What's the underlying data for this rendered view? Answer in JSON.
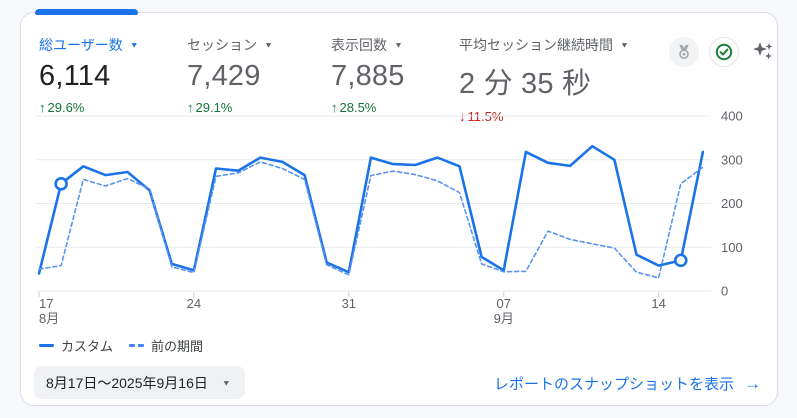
{
  "ui": {
    "caret": "▼",
    "arrow_right": "→"
  },
  "colors": {
    "accent": "#1a73e8",
    "positive": "#137333",
    "negative": "#c5221f",
    "line_current": "#1a73e8",
    "line_previous": "#5b93f0",
    "grid": "#e8eaed",
    "axis_text": "#5f6368",
    "tick": "#c9cdd2"
  },
  "metrics": [
    {
      "label": "総ユーザー数",
      "value": "6,114",
      "delta_arrow": "↑",
      "delta": "29.6%",
      "trend": "up",
      "selected": true
    },
    {
      "label": "セッション",
      "value": "7,429",
      "delta_arrow": "↑",
      "delta": "29.1%",
      "trend": "up",
      "selected": false
    },
    {
      "label": "表示回数",
      "value": "7,885",
      "delta_arrow": "↑",
      "delta": "28.5%",
      "trend": "up",
      "selected": false
    },
    {
      "label": "平均セッション継続時間",
      "value": "2 分 35 秒",
      "delta_arrow": "↓",
      "delta": "11.5%",
      "trend": "down",
      "selected": false
    }
  ],
  "icons": {
    "medal": "benchmark-medal",
    "check": "data-quality-check",
    "sparkle": "insights-sparkle"
  },
  "chart_data": {
    "type": "line",
    "x": [
      "8/17",
      "8/18",
      "8/19",
      "8/20",
      "8/21",
      "8/22",
      "8/23",
      "8/24",
      "8/25",
      "8/26",
      "8/27",
      "8/28",
      "8/29",
      "8/30",
      "8/31",
      "9/1",
      "9/2",
      "9/3",
      "9/4",
      "9/5",
      "9/6",
      "9/7",
      "9/8",
      "9/9",
      "9/10",
      "9/11",
      "9/12",
      "9/13",
      "9/14",
      "9/15",
      "9/16"
    ],
    "series": [
      {
        "name": "カスタム",
        "style": "solid",
        "values": [
          40,
          245,
          285,
          265,
          272,
          230,
          62,
          47,
          280,
          275,
          305,
          295,
          265,
          65,
          43,
          305,
          290,
          288,
          305,
          285,
          78,
          47,
          318,
          293,
          286,
          331,
          300,
          83,
          58,
          70,
          318
        ]
      },
      {
        "name": "前の期間",
        "style": "dashed",
        "values": [
          50,
          58,
          255,
          240,
          257,
          233,
          55,
          42,
          262,
          270,
          295,
          280,
          255,
          60,
          37,
          264,
          274,
          266,
          252,
          225,
          62,
          44,
          45,
          137,
          118,
          108,
          98,
          43,
          30,
          245,
          283
        ]
      }
    ],
    "marker_indices": [
      1,
      29
    ],
    "ylim": [
      0,
      400
    ],
    "y_ticks": [
      0,
      100,
      200,
      300,
      400
    ],
    "x_tick_labels": [
      {
        "index": 0,
        "label": "17",
        "month": "8月"
      },
      {
        "index": 7,
        "label": "24"
      },
      {
        "index": 14,
        "label": "31"
      },
      {
        "index": 21,
        "label": "07",
        "month": "9月"
      },
      {
        "index": 28,
        "label": "14"
      }
    ],
    "grid": "horizontal",
    "legend_position": "bottom-left"
  },
  "legend": [
    {
      "label": "カスタム",
      "style": "solid"
    },
    {
      "label": "前の期間",
      "style": "dashed"
    }
  ],
  "footer": {
    "date_range": "8月17日〜2025年9月16日",
    "snapshot_link": "レポートのスナップショットを表示"
  }
}
